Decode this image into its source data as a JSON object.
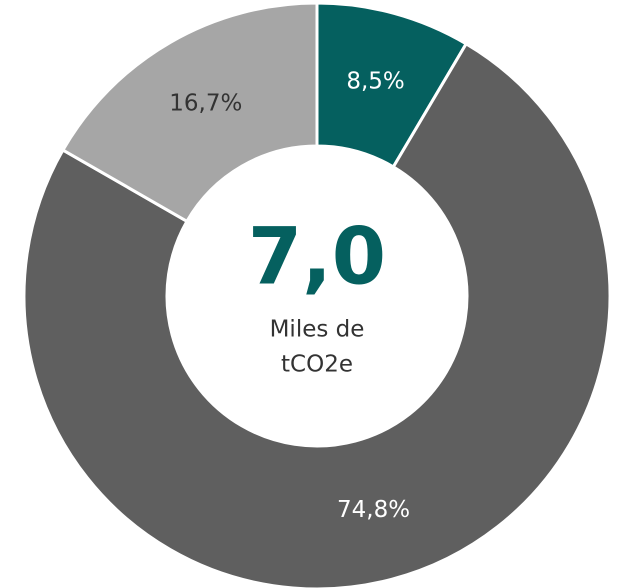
{
  "chart_data": {
    "type": "donut",
    "categories": [
      null,
      null,
      null
    ],
    "values": [
      8.5,
      74.8,
      16.7
    ],
    "value_labels": [
      "8,5%",
      "74,8%",
      "16,7%"
    ],
    "colors": [
      "#05605f",
      "#5f5f5f",
      "#a6a6a6"
    ],
    "label_colors": [
      "#ffffff",
      "#ffffff",
      "#333333"
    ],
    "center_value": "7,0",
    "center_value_color": "#05605f",
    "center_label": [
      "Miles de",
      "tCO2e"
    ]
  }
}
